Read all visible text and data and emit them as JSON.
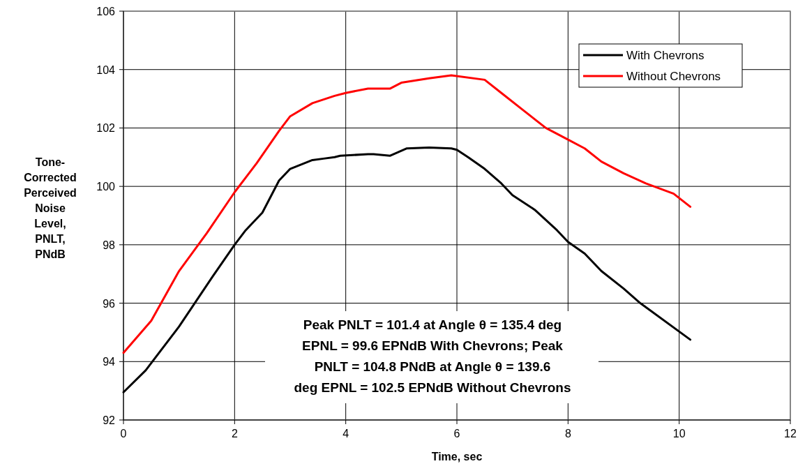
{
  "chart_data": {
    "type": "line",
    "xlabel": "Time, sec",
    "ylabel": "Tone-Corrected Perceived Noise Level, PNLT, PNdB",
    "xlim": [
      0,
      12
    ],
    "xticks": [
      0,
      2,
      4,
      6,
      8,
      10,
      12
    ],
    "ylim": [
      92,
      106
    ],
    "yticks": [
      92,
      94,
      96,
      98,
      100,
      102,
      104,
      106
    ],
    "grid": true,
    "legend": "top right",
    "marker": "none",
    "annotations": [
      "Peak PNLT = 101.4 at Angle θ = 135.4 deg EPNL = 99.6 EPNdB With Chevrons; Peak PNLT =  104.8 PNdB at Angle θ = 139.6 deg EPNL = 102.5 EPNdB Without Chevrons"
    ],
    "series": [
      {
        "name": "With Chevrons",
        "color": "#000000",
        "line_style": "solid",
        "x": [
          0,
          0.4,
          1,
          1.6,
          2,
          2.2,
          2.5,
          2.8,
          3,
          3.4,
          3.6,
          3.8,
          3.9,
          4.4,
          4.5,
          4.8,
          5.1,
          5.5,
          5.9,
          6,
          6.2,
          6.5,
          6.8,
          7,
          7.4,
          7.8,
          8,
          8.3,
          8.6,
          9,
          9.3,
          10.2
        ],
        "values": [
          92.95,
          93.7,
          95.2,
          96.9,
          98,
          98.5,
          99.1,
          100.2,
          100.6,
          100.9,
          100.95,
          101,
          101.05,
          101.1,
          101.1,
          101.05,
          101.3,
          101.33,
          101.3,
          101.25,
          101,
          100.6,
          100.1,
          99.7,
          99.2,
          98.5,
          98.1,
          97.7,
          97.1,
          96.5,
          96,
          94.75
        ]
      },
      {
        "name": "Without Chevrons",
        "color": "#ff0000",
        "line_style": "solid",
        "x": [
          0,
          0.5,
          1,
          1.5,
          2,
          2.4,
          2.8,
          3,
          3.4,
          3.8,
          4,
          4.4,
          4.8,
          5,
          5.5,
          5.9,
          6.5,
          6.8,
          7.2,
          7.6,
          8,
          8.3,
          8.6,
          9,
          9.4,
          9.9,
          10.2
        ],
        "values": [
          94.3,
          95.4,
          97.1,
          98.4,
          99.8,
          100.8,
          101.9,
          102.4,
          102.85,
          103.1,
          103.2,
          103.35,
          103.35,
          103.55,
          103.7,
          103.8,
          103.65,
          103.2,
          102.6,
          102,
          101.6,
          101.3,
          100.85,
          100.45,
          100.1,
          99.75,
          99.3
        ]
      }
    ]
  }
}
